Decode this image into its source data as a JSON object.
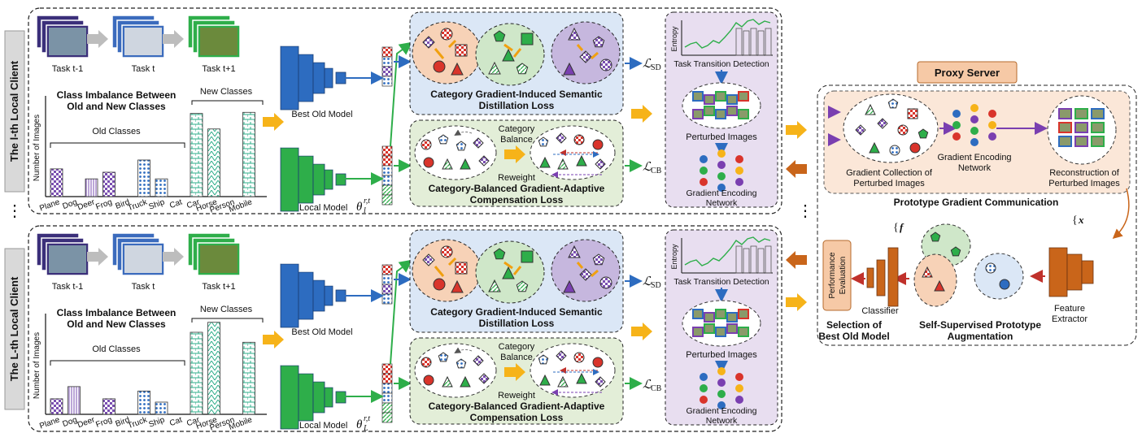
{
  "clients": [
    {
      "side_label": "The l-th Local Client",
      "tasks": [
        "Task t-1",
        "Task t",
        "Task t+1"
      ],
      "chart_title_1": "Class Imbalance Between",
      "chart_title_2": "Old and New Classes",
      "new_classes": "New Classes",
      "old_classes": "Old Classes",
      "ylabel": "Number of Images",
      "best_old_model": "Best Old Model",
      "local_model_text": "Local Model",
      "local_model_math": "θ",
      "local_model_sub": "l",
      "local_model_sup": "r,t",
      "sd_title_1": "Category Gradient-Induced Semantic",
      "sd_title_2": "Distillation Loss",
      "sd_loss": "SD",
      "cb_title_1": "Category-Balanced Gradient-Adaptive",
      "cb_title_2": "Compensation Loss",
      "cb_loss": "CB",
      "category_balance_1": "Category",
      "category_balance_2": "Balance",
      "reweight": "Reweight",
      "entropy": "Entropy",
      "task_transition": "Task Transition Detection",
      "perturbed_images": "Perturbed Images",
      "gen_1": "Gradient Encoding",
      "gen_2": "Network"
    },
    {
      "side_label": "The L-th Local Client",
      "tasks": [
        "Task t-1",
        "Task t",
        "Task t+1"
      ],
      "chart_title_1": "Class Imbalance Between",
      "chart_title_2": "Old and New Classes",
      "new_classes": "New Classes",
      "old_classes": "Old Classes",
      "ylabel": "Number of Images",
      "best_old_model": "Best Old Model",
      "local_model_text": "Local Model",
      "local_model_math": "θ",
      "local_model_sub": "L",
      "local_model_sup": "r,t",
      "sd_title_1": "Category Gradient-Induced Semantic",
      "sd_title_2": "Distillation Loss",
      "sd_loss": "SD",
      "cb_title_1": "Category-Balanced Gradient-Adaptive",
      "cb_title_2": "Compensation Loss",
      "cb_loss": "CB",
      "category_balance_1": "Category",
      "category_balance_2": "Balance",
      "reweight": "Reweight",
      "entropy": "Entropy",
      "task_transition": "Task Transition Detection",
      "perturbed_images": "Perturbed Images",
      "gen_1": "Gradient Encoding",
      "gen_2": "Network"
    }
  ],
  "chart_data": [
    {
      "type": "bar",
      "categories": [
        "Plane",
        "Dog",
        "Deer",
        "Frog",
        "Bird",
        "Truck",
        "Ship",
        "Cat",
        "Car",
        "Horse",
        "Person",
        "Mobile"
      ],
      "values": [
        2.5,
        0,
        1.6,
        2.2,
        0,
        3.3,
        1.6,
        0,
        7.5,
        6.1,
        0,
        7.6
      ],
      "old_count": 8
    },
    {
      "type": "bar",
      "categories": [
        "Plane",
        "Dog",
        "Deer",
        "Frog",
        "Bird",
        "Truck",
        "Ship",
        "Cat",
        "Car",
        "Horse",
        "Person",
        "Mobile"
      ],
      "values": [
        1.4,
        2.5,
        0,
        1.4,
        0,
        2.1,
        1.1,
        0,
        7.4,
        8.3,
        0,
        6.5
      ],
      "old_count": 8
    }
  ],
  "server": {
    "title": "Proxy Server",
    "gc_1": "Gradient Collection of",
    "gc_2": "Perturbed Images",
    "gen_1": "Gradient Encoding",
    "gen_2": "Network",
    "rec_1": "Reconstruction of",
    "rec_2": "Perturbed Images",
    "pgc": "Prototype Gradient Communication",
    "feat_set_f": "f",
    "feat_set_x": "x",
    "feature_1": "Feature",
    "feature_2": "Extractor",
    "classifier": "Classifier",
    "perf_1": "Performance",
    "perf_2": "Evaluation",
    "sel_1": "Selection of",
    "sel_2": "Best Old Model",
    "ssp_1": "Self-Supervised Prototype",
    "ssp_2": "Augmentation"
  },
  "colors": {
    "blue": "#2d6cc0",
    "green": "#2eae4a",
    "orange": "#f6b319",
    "brown": "#c9651a",
    "sd_bg": "#dbe7f6",
    "cb_bg": "#e3eed8",
    "td_bg": "#e8def0",
    "server_bg": "#fbe7d8"
  }
}
